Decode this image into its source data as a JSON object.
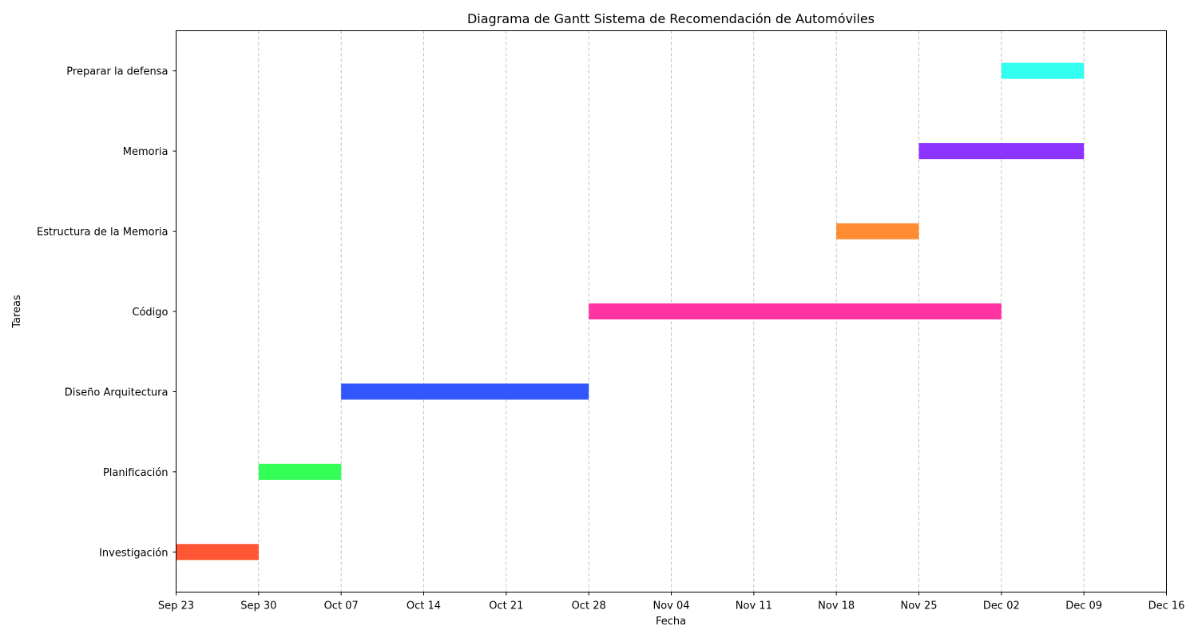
{
  "chart_data": {
    "type": "gantt",
    "title": "Diagrama de Gantt Sistema de Recomendación de Automóviles",
    "xlabel": "Fecha",
    "ylabel": "Tareas",
    "xlim": [
      "2024-09-23",
      "2024-12-16"
    ],
    "x_ticks": [
      {
        "date": "2024-09-23",
        "label": "Sep 23"
      },
      {
        "date": "2024-09-30",
        "label": "Sep 30"
      },
      {
        "date": "2024-10-07",
        "label": "Oct 07"
      },
      {
        "date": "2024-10-14",
        "label": "Oct 14"
      },
      {
        "date": "2024-10-21",
        "label": "Oct 21"
      },
      {
        "date": "2024-10-28",
        "label": "Oct 28"
      },
      {
        "date": "2024-11-04",
        "label": "Nov 04"
      },
      {
        "date": "2024-11-11",
        "label": "Nov 11"
      },
      {
        "date": "2024-11-18",
        "label": "Nov 18"
      },
      {
        "date": "2024-11-25",
        "label": "Nov 25"
      },
      {
        "date": "2024-12-02",
        "label": "Dec 02"
      },
      {
        "date": "2024-12-09",
        "label": "Dec 09"
      },
      {
        "date": "2024-12-16",
        "label": "Dec 16"
      }
    ],
    "grid": "vertical dashed",
    "tasks": [
      {
        "name": "Investigación",
        "start": "2024-09-23",
        "end": "2024-09-30",
        "color": "#FF5733"
      },
      {
        "name": "Planificación",
        "start": "2024-09-30",
        "end": "2024-10-07",
        "color": "#33FF57"
      },
      {
        "name": "Diseño Arquitectura",
        "start": "2024-10-07",
        "end": "2024-10-28",
        "color": "#3357FF"
      },
      {
        "name": "Código",
        "start": "2024-10-28",
        "end": "2024-12-02",
        "color": "#FF33A1"
      },
      {
        "name": "Estructura de la Memoria",
        "start": "2024-11-18",
        "end": "2024-11-25",
        "color": "#FF8C33"
      },
      {
        "name": "Memoria",
        "start": "2024-11-25",
        "end": "2024-12-09",
        "color": "#8C33FF"
      },
      {
        "name": "Preparar la defensa",
        "start": "2024-12-02",
        "end": "2024-12-09",
        "color": "#33FFF0"
      }
    ]
  }
}
